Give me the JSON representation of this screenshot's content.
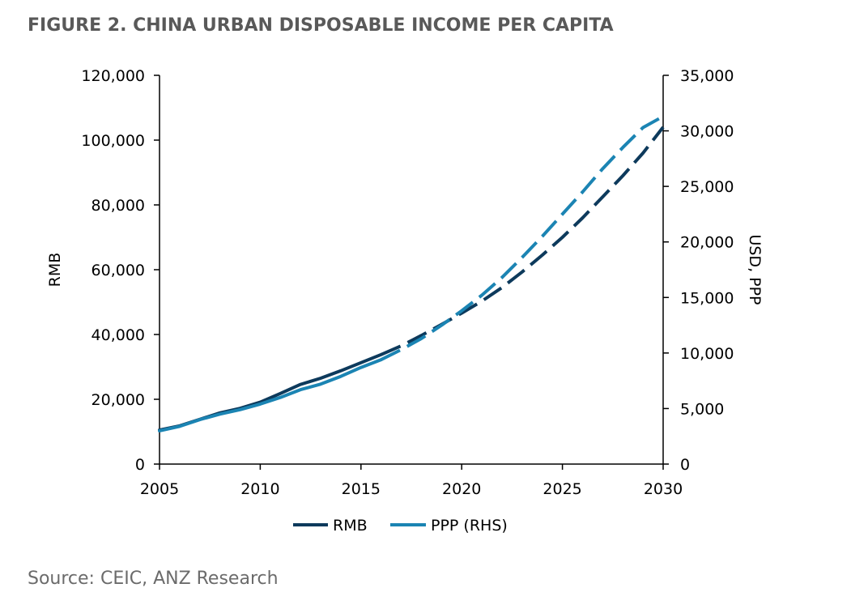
{
  "source": "Source: CEIC, ANZ Research",
  "chart_data": {
    "type": "line",
    "title": "FIGURE 2. CHINA URBAN DISPOSABLE INCOME PER CAPITA",
    "ylabel": "RMB",
    "ylabel_right": "USD, PPP",
    "xlim": [
      2005,
      2030
    ],
    "ylim": [
      0,
      120000
    ],
    "ylim_right": [
      0,
      35000
    ],
    "x_ticks": [
      2005,
      2010,
      2015,
      2020,
      2025,
      2030
    ],
    "x_tick_labels": [
      "2005",
      "2010",
      "2015",
      "2020",
      "2025",
      "2030"
    ],
    "y_ticks": [
      0,
      20000,
      40000,
      60000,
      80000,
      100000,
      120000
    ],
    "y_tick_labels": [
      "0",
      "20,000",
      "40,000",
      "60,000",
      "80,000",
      "100,000",
      "120,000"
    ],
    "y_right_ticks": [
      0,
      5000,
      10000,
      15000,
      20000,
      25000,
      30000,
      35000
    ],
    "y_right_tick_labels": [
      "0",
      "5,000",
      "10,000",
      "15,000",
      "20,000",
      "25,000",
      "30,000",
      "35,000"
    ],
    "grid": false,
    "legend_position": "bottom",
    "forecast_start": 2016,
    "series": [
      {
        "name": "RMB",
        "axis": "left",
        "color": "#0d3a5c",
        "x": [
          2005,
          2006,
          2007,
          2008,
          2009,
          2010,
          2011,
          2012,
          2013,
          2014,
          2015,
          2016,
          2017,
          2018,
          2019,
          2020,
          2021,
          2022,
          2023,
          2024,
          2025,
          2026,
          2027,
          2028,
          2029,
          2030
        ],
        "values": [
          10500,
          11800,
          13800,
          15800,
          17200,
          19100,
          21800,
          24600,
          26500,
          28800,
          31300,
          33800,
          36500,
          39700,
          43100,
          46600,
          50300,
          54500,
          59300,
          64500,
          70000,
          76000,
          82500,
          89000,
          96000,
          104000
        ]
      },
      {
        "name": "PPP (RHS)",
        "axis": "right",
        "color": "#1b84b3",
        "x": [
          2005,
          2006,
          2007,
          2008,
          2009,
          2010,
          2011,
          2012,
          2013,
          2014,
          2015,
          2016,
          2017,
          2018,
          2019,
          2020,
          2021,
          2022,
          2023,
          2024,
          2025,
          2026,
          2027,
          2028,
          2029,
          2030
        ],
        "values": [
          3000,
          3400,
          4000,
          4500,
          4900,
          5400,
          6000,
          6700,
          7200,
          7900,
          8700,
          9400,
          10300,
          11300,
          12500,
          13800,
          15200,
          16800,
          18600,
          20500,
          22500,
          24500,
          26600,
          28500,
          30300,
          31300
        ]
      }
    ]
  }
}
